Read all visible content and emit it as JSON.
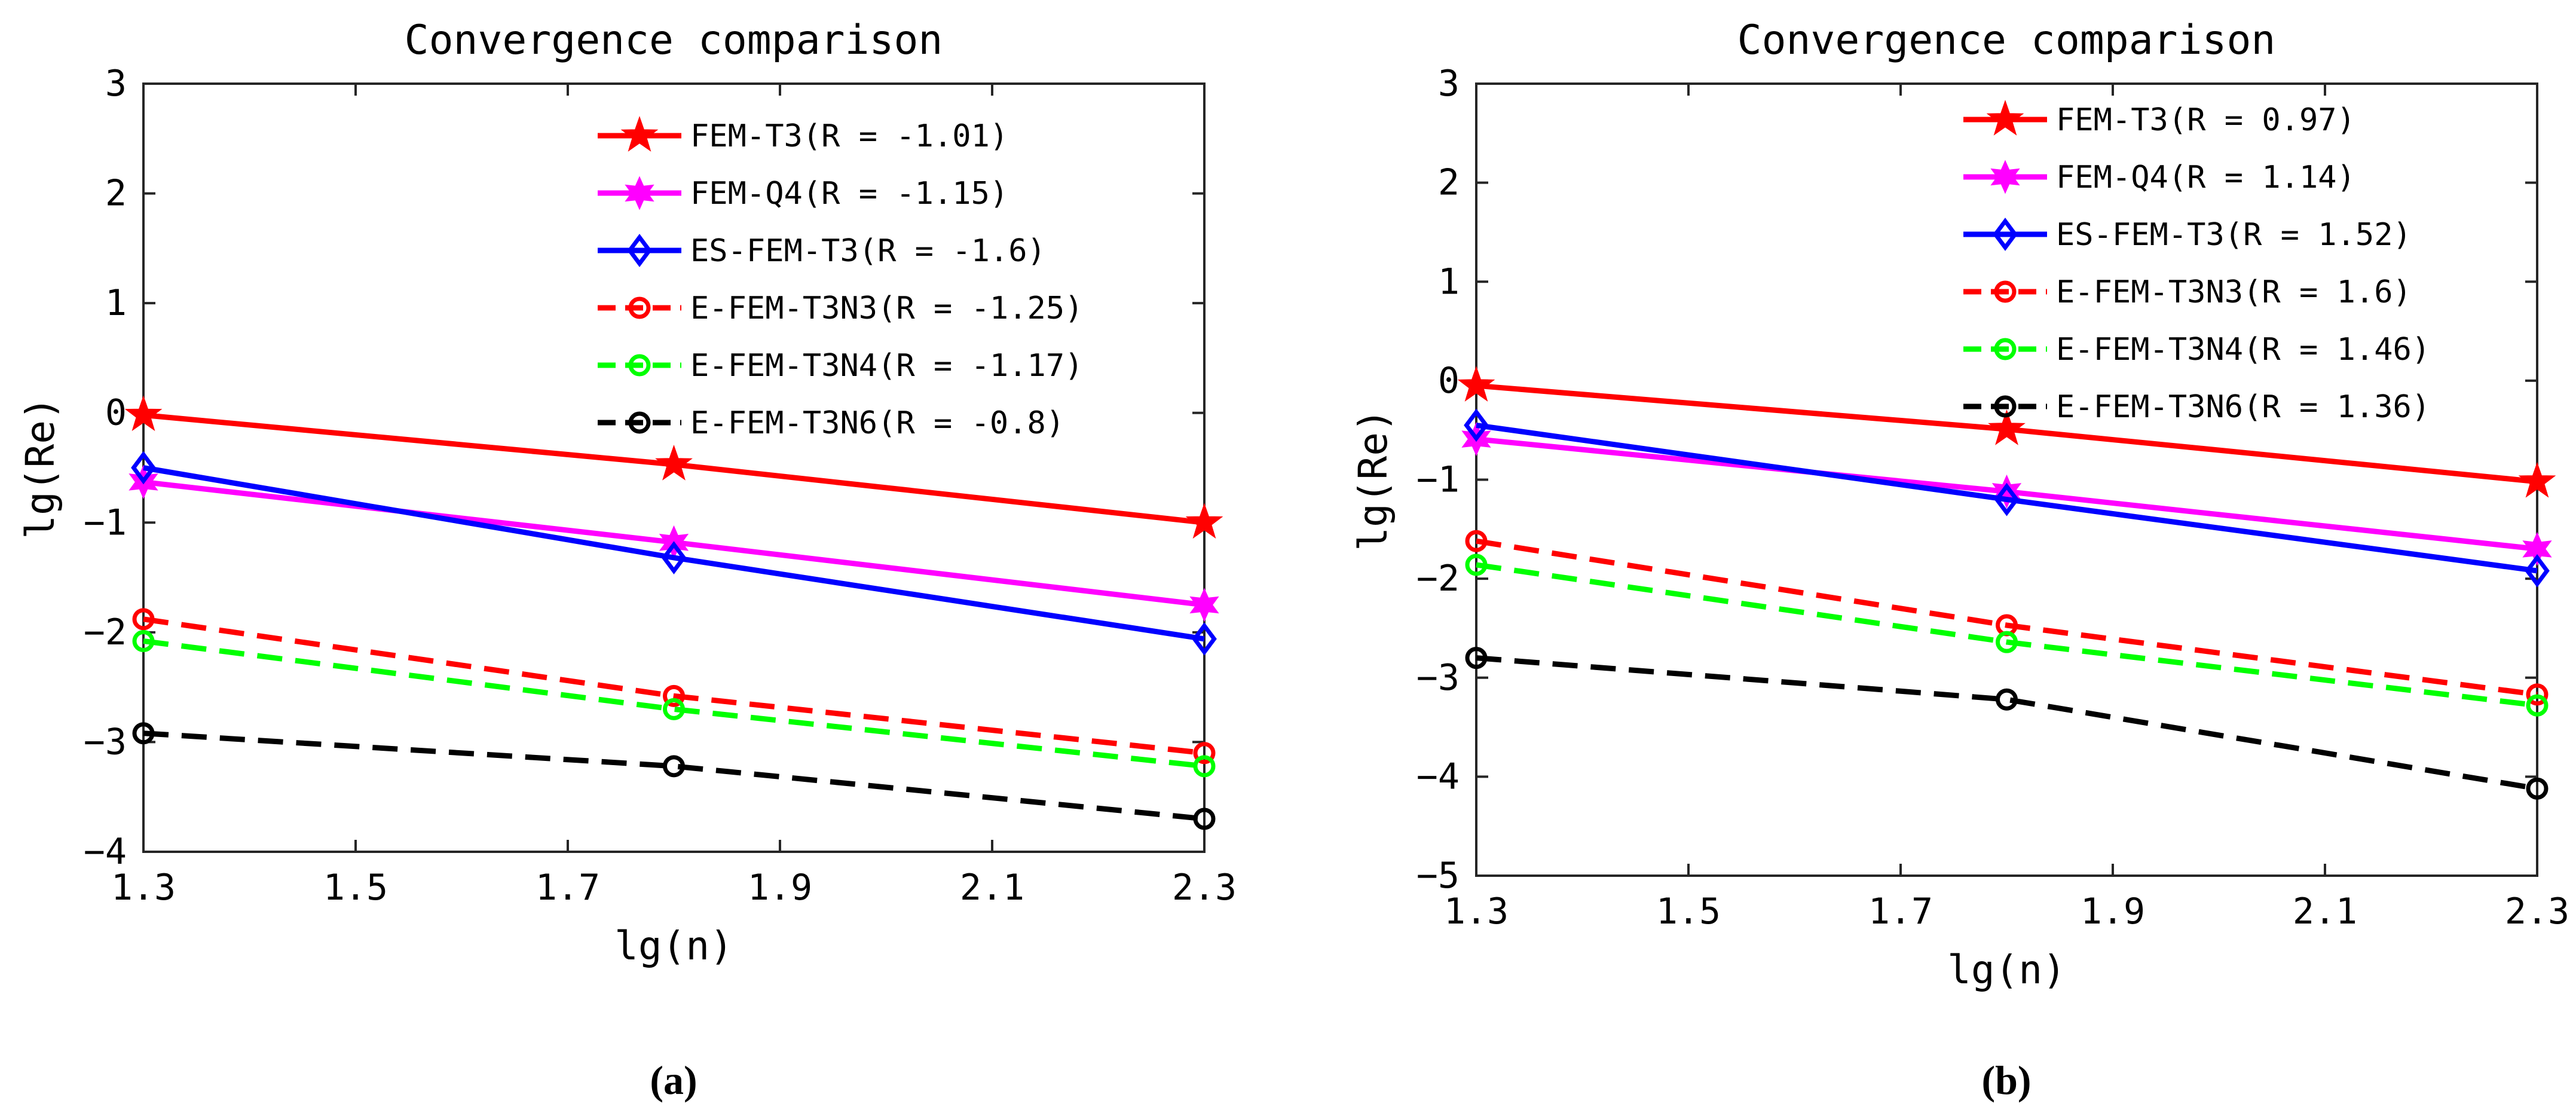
{
  "chart_data": [
    {
      "panel_label": "(a)",
      "type": "line",
      "title": "Convergence comparison",
      "xlabel": "lg(n)",
      "ylabel": "lg(Re)",
      "xlim": [
        1.3,
        2.3
      ],
      "ylim": [
        -4,
        3
      ],
      "xticks": [
        1.3,
        1.5,
        1.7,
        1.9,
        2.1,
        2.3
      ],
      "xtick_labels": [
        "1.3",
        "1.5",
        "1.7",
        "1.9",
        "2.1",
        "2.3"
      ],
      "yticks": [
        -4,
        -3,
        -2,
        -1,
        0,
        1,
        2,
        3
      ],
      "ytick_labels": [
        "−4",
        "−3",
        "−2",
        "−1",
        "0",
        "1",
        "2",
        "3"
      ],
      "grid": false,
      "legend_position": "top-right",
      "x": [
        1.3,
        1.8,
        2.3
      ],
      "series": [
        {
          "name": "FEM-T3(R = -1.01)",
          "values": [
            -0.02,
            -0.47,
            -1.0
          ],
          "color": "#ff0000",
          "dash": "solid",
          "marker": "star"
        },
        {
          "name": "FEM-Q4(R = -1.15)",
          "values": [
            -0.63,
            -1.18,
            -1.75
          ],
          "color": "#ff00ff",
          "dash": "solid",
          "marker": "hexagram"
        },
        {
          "name": "ES-FEM-T3(R = -1.6)",
          "values": [
            -0.5,
            -1.32,
            -2.06
          ],
          "color": "#0000ff",
          "dash": "solid",
          "marker": "diamond"
        },
        {
          "name": "E-FEM-T3N3(R = -1.25)",
          "values": [
            -1.88,
            -2.58,
            -3.1
          ],
          "color": "#ff0000",
          "dash": "dashed",
          "marker": "circle"
        },
        {
          "name": "E-FEM-T3N4(R = -1.17)",
          "values": [
            -2.08,
            -2.7,
            -3.22
          ],
          "color": "#00ff00",
          "dash": "dashed",
          "marker": "circle"
        },
        {
          "name": "E-FEM-T3N6(R = -0.8)",
          "values": [
            -2.92,
            -3.22,
            -3.7
          ],
          "color": "#000000",
          "dash": "dashed",
          "marker": "circle"
        }
      ]
    },
    {
      "panel_label": "(b)",
      "type": "line",
      "title": "Convergence comparison",
      "xlabel": "lg(n)",
      "ylabel": "lg(Re)",
      "xlim": [
        1.3,
        2.3
      ],
      "ylim": [
        -5,
        3
      ],
      "xticks": [
        1.3,
        1.5,
        1.7,
        1.9,
        2.1,
        2.3
      ],
      "xtick_labels": [
        "1.3",
        "1.5",
        "1.7",
        "1.9",
        "2.1",
        "2.3"
      ],
      "yticks": [
        -5,
        -4,
        -3,
        -2,
        -1,
        0,
        1,
        2,
        3
      ],
      "ytick_labels": [
        "−5",
        "−4",
        "−3",
        "−2",
        "−1",
        "0",
        "1",
        "2",
        "3"
      ],
      "grid": false,
      "legend_position": "top-right",
      "x": [
        1.3,
        1.8,
        2.3
      ],
      "series": [
        {
          "name": "FEM-T3(R = 0.97)",
          "values": [
            -0.05,
            -0.49,
            -1.02
          ],
          "color": "#ff0000",
          "dash": "solid",
          "marker": "star"
        },
        {
          "name": "FEM-Q4(R = 1.14)",
          "values": [
            -0.59,
            -1.12,
            -1.7
          ],
          "color": "#ff00ff",
          "dash": "solid",
          "marker": "hexagram"
        },
        {
          "name": "ES-FEM-T3(R = 1.52)",
          "values": [
            -0.45,
            -1.2,
            -1.92
          ],
          "color": "#0000ff",
          "dash": "solid",
          "marker": "diamond"
        },
        {
          "name": "E-FEM-T3N3(R = 1.6)",
          "values": [
            -1.62,
            -2.47,
            -3.17
          ],
          "color": "#ff0000",
          "dash": "dashed",
          "marker": "circle"
        },
        {
          "name": "E-FEM-T3N4(R = 1.46)",
          "values": [
            -1.86,
            -2.64,
            -3.28
          ],
          "color": "#00ff00",
          "dash": "dashed",
          "marker": "circle"
        },
        {
          "name": "E-FEM-T3N6(R = 1.36)",
          "values": [
            -2.8,
            -3.22,
            -4.12
          ],
          "color": "#000000",
          "dash": "dashed",
          "marker": "circle"
        }
      ]
    }
  ]
}
